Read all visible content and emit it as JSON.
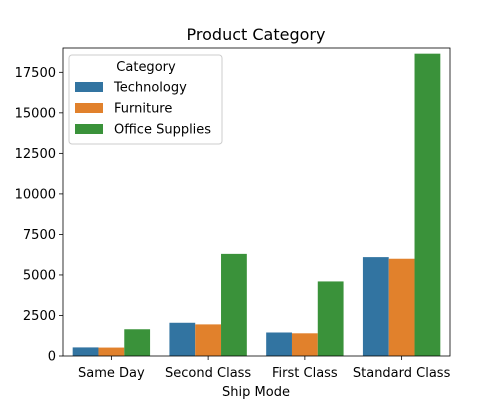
{
  "chart_data": {
    "type": "bar",
    "title": "Product Category",
    "xlabel": "Ship Mode",
    "ylabel": "",
    "categories": [
      "Same Day",
      "Second Class",
      "First Class",
      "Standard Class"
    ],
    "series": [
      {
        "name": "Technology",
        "values": [
          530,
          2050,
          1450,
          6100
        ],
        "color": "#3274a1"
      },
      {
        "name": "Furniture",
        "values": [
          520,
          1950,
          1400,
          6000
        ],
        "color": "#e1812c"
      },
      {
        "name": "Office Supplies",
        "values": [
          1650,
          6300,
          4600,
          18650
        ],
        "color": "#3a923a"
      }
    ],
    "ylim": [
      0,
      19000
    ],
    "yticks": [
      0,
      2500,
      5000,
      7500,
      10000,
      12500,
      15000,
      17500
    ],
    "grid": false,
    "legend": {
      "title": "Category",
      "placement": "top-left"
    }
  }
}
